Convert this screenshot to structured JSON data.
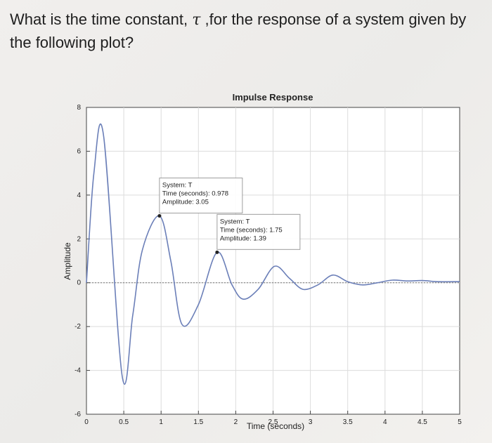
{
  "question": {
    "before_symbol": "What is the time constant, ",
    "symbol": "τ",
    "after_symbol": " ,for the response of a system given by the following plot?"
  },
  "chart_data": {
    "type": "line",
    "title": "Impulse Response",
    "xlabel": "Time (seconds)",
    "ylabel": "Amplitude",
    "xlim": [
      0,
      5
    ],
    "ylim": [
      -6,
      8
    ],
    "grid": true,
    "x_ticks": [
      "0",
      "0.5",
      "1",
      "1.5",
      "2",
      "2.5",
      "3",
      "3.5",
      "4",
      "4.5",
      "5"
    ],
    "y_ticks": [
      "-6",
      "-4",
      "-2",
      "0",
      "2",
      "4",
      "6",
      "8"
    ],
    "series": [
      {
        "color": "#6b7fb8",
        "x": [
          0,
          0.1,
          0.23,
          0.48,
          0.62,
          0.75,
          0.978,
          1.13,
          1.28,
          1.5,
          1.75,
          1.95,
          2.1,
          2.3,
          2.52,
          2.72,
          2.9,
          3.1,
          3.3,
          3.5,
          3.7,
          3.9,
          4.1,
          4.3,
          4.5,
          4.7,
          5.0
        ],
        "y": [
          0,
          5.0,
          6.7,
          -4.3,
          -1.5,
          1.5,
          3.05,
          1.0,
          -1.9,
          -1.0,
          1.39,
          -0.1,
          -0.75,
          -0.3,
          0.75,
          0.2,
          -0.3,
          -0.1,
          0.35,
          0.05,
          -0.1,
          0.0,
          0.12,
          0.08,
          0.1,
          0.05,
          0.05
        ]
      }
    ],
    "datatips": [
      {
        "x": 0.978,
        "y": 3.05,
        "system": "System: T",
        "time": "Time (seconds): 0.978",
        "amplitude": "Amplitude: 3.05"
      },
      {
        "x": 1.75,
        "y": 1.39,
        "system": "System: T",
        "time": "Time (seconds): 1.75",
        "amplitude": "Amplitude: 1.39"
      }
    ]
  }
}
